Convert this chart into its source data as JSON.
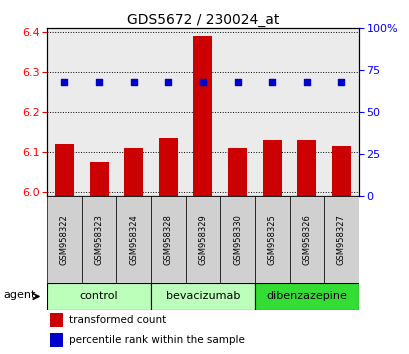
{
  "title": "GDS5672 / 230024_at",
  "samples": [
    "GSM958322",
    "GSM958323",
    "GSM958324",
    "GSM958328",
    "GSM958329",
    "GSM958330",
    "GSM958325",
    "GSM958326",
    "GSM958327"
  ],
  "bar_values": [
    6.12,
    6.075,
    6.11,
    6.135,
    6.39,
    6.11,
    6.13,
    6.13,
    6.115
  ],
  "percentile_values": [
    68,
    68,
    68,
    68,
    68,
    68,
    68,
    68,
    68
  ],
  "bar_color": "#cc0000",
  "dot_color": "#0000cc",
  "ylim_left": [
    5.99,
    6.41
  ],
  "ylim_right": [
    0,
    100
  ],
  "yticks_left": [
    6.0,
    6.1,
    6.2,
    6.3,
    6.4
  ],
  "yticks_right": [
    0,
    25,
    50,
    75,
    100
  ],
  "group_bounds": [
    {
      "label": "control",
      "start": 0,
      "end": 2,
      "color": "#bbffbb"
    },
    {
      "label": "bevacizumab",
      "start": 3,
      "end": 5,
      "color": "#bbffbb"
    },
    {
      "label": "dibenzazepine",
      "start": 6,
      "end": 8,
      "color": "#33dd33"
    }
  ],
  "agent_label": "agent",
  "legend": [
    {
      "label": "transformed count",
      "color": "#cc0000"
    },
    {
      "label": "percentile rank within the sample",
      "color": "#0000cc"
    }
  ],
  "background_color": "#ffffff",
  "plot_bg_color": "#ebebeb",
  "bar_width": 0.55,
  "sample_box_color": "#d0d0d0",
  "right_ytick_labels": [
    "0",
    "25",
    "50",
    "75",
    "100%"
  ]
}
